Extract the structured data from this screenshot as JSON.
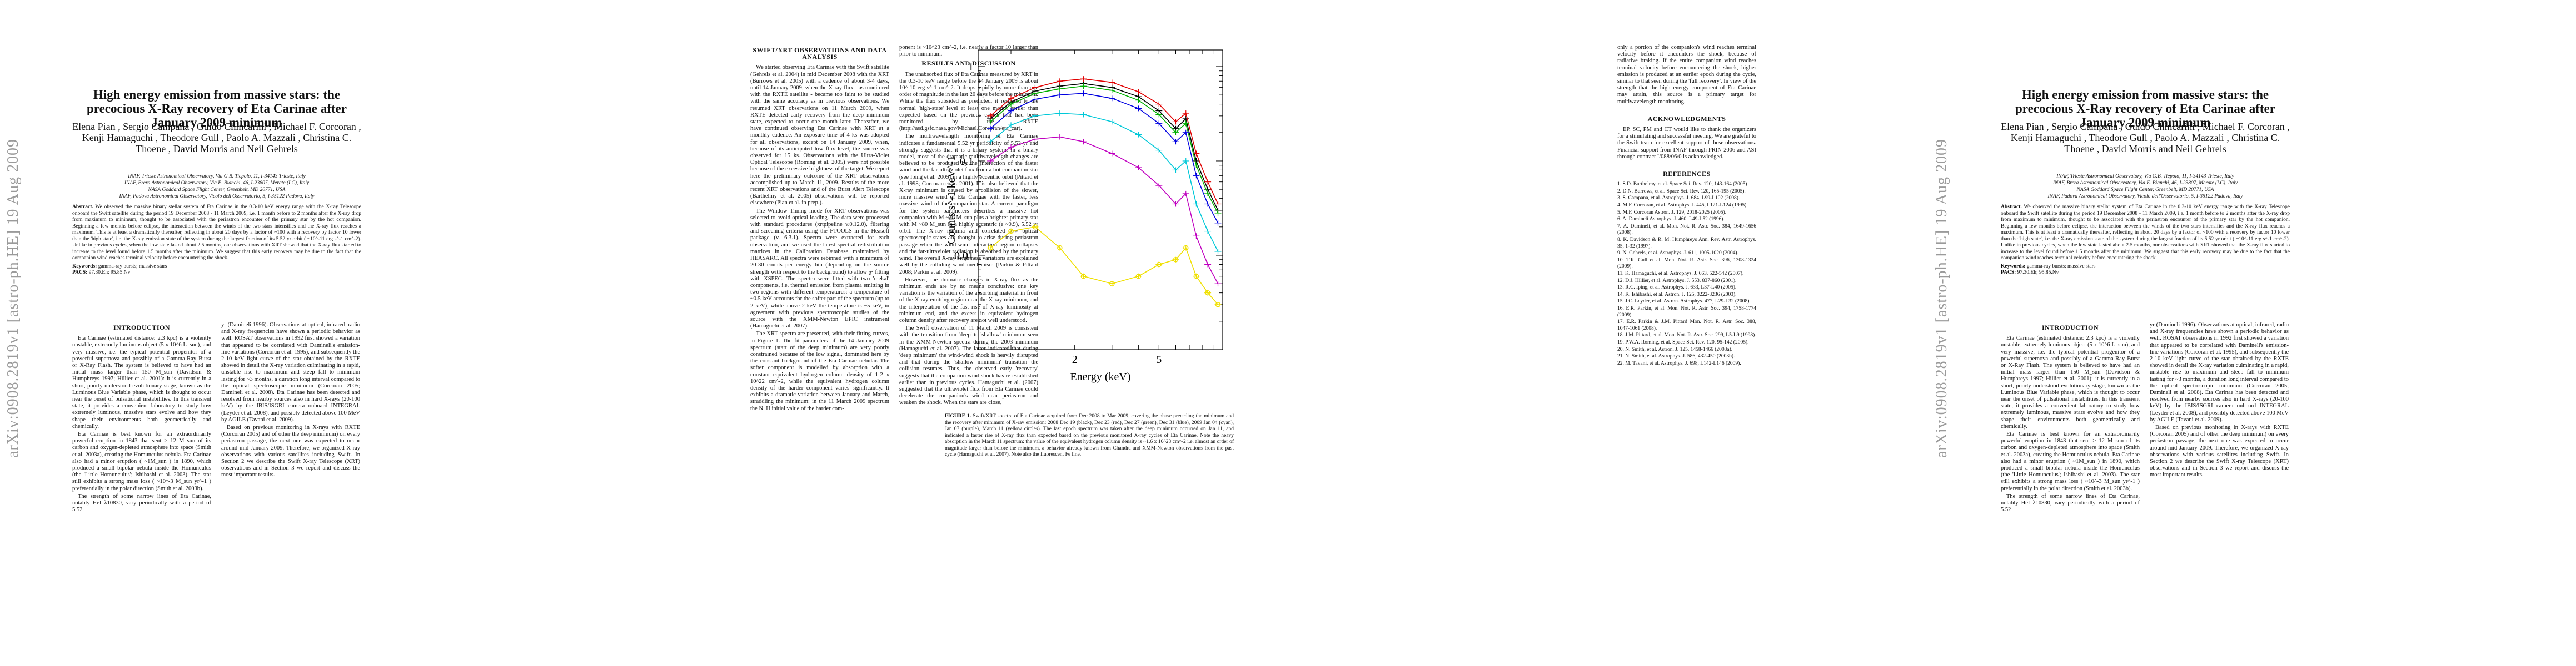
{
  "arxiv_stamp": "arXiv:0908.2819v1  [astro-ph.HE]  19 Aug 2009",
  "title": "High energy emission from massive stars: the precocious X-Ray recovery of Eta Carinae after January 2009 minimum",
  "authors": "Elena Pian , Sergio Campana , Guido Chincarini , Michael F. Corcoran , Kenji Hamaguchi , Theodore Gull , Paolo A. Mazzali , Christina C. Thoene , David Morris and Neil Gehrels",
  "affiliations": [
    "INAF, Trieste Astronomical Observatory, Via G.B. Tiepolo, 11, I-34143 Trieste, Italy",
    "INAF, Brera Astronomical Observatory, Via E. Bianchi, 46, I-23807, Merate (LC), Italy",
    "NASA Goddard Space Flight Center, Greenbelt, MD 20771, USA",
    "INAF, Padova Astronomical Observatory, Vicolo dell'Osservatorio, 5, I-35122 Padova, Italy"
  ],
  "abstract_label": "Abstract.",
  "abstract": "We observed the massive binary stellar system of Eta Carinae in the 0.3-10 keV energy range with the X-ray Telescope onboard the Swift satellite during the period 19 December 2008 - 11 March 2009, i.e. 1 month before to 2 months after the X-ray drop from maximum to minimum, thought to be associated with the periastron encounter of the primary star by the hot companion. Beginning a few months before eclipse, the interaction between the winds of the two stars intensifies and the X-ray flux reaches a maximum. This is at least a dramatically thereafter, reflecting in about 20 days by a factor of ~100 with a recovery by factor 10 lower than the 'high state', i.e. the X-ray emission state of the system during the largest fraction of its 5.52 yr orbit ( ~10^-11 erg s^-1 cm^-2). Unlike in previous cycles, when the low state lasted about 2.5 months, our observations with XRT showed that the X-ray flux started to increase to the level found before 1.5 months after the minimum. We suggest that this early recovery may be due to the fact that the companion wind reaches terminal velocity before encountering the shock.",
  "keywords_label": "Keywords:",
  "keywords": "gamma-ray bursts; massive stars",
  "pacs_label": "PACS:",
  "pacs": "97.30.Eh; 95.85.Nv",
  "sections": {
    "intro": "INTRODUCTION",
    "obs": "SWIFT/XRT OBSERVATIONS AND DATA ANALYSIS",
    "results": "RESULTS AND DISCUSSION",
    "ack": "ACKNOWLEDGMENTS",
    "refs": "REFERENCES"
  },
  "intro_paragraphs": [
    "Eta Carinae (estimated distance: 2.3 kpc) is a violently unstable, extremely luminous object (5 x 10^6 L_sun), and very massive, i.e. the typical potential progenitor of a powerful supernova and possibly of a Gamma-Ray Burst or X-Ray Flash. The system is believed to have had an initial mass larger than 150 M_sun (Davidson & Humphreys 1997; Hillier et al. 2001): it is currently in a short, poorly understood evolutionary stage, known as the Luminous Blue Variable phase, which is thought to occur near the onset of pulsational instabilities. In this transient state, it provides a convenient laboratory to study how extremely luminous, massive stars evolve and how they shape their environments both geometrically and chemically.",
    "Eta Carinae is best known for an extraordinarily powerful eruption in 1843 that sent > 12 M_sun of its carbon and oxygen-depleted atmosphere into space (Smith et al. 2003a), creating the Homunculus nebula. Eta Carinae also had a minor eruption ( ~1M_sun ) in 1890, which produced a small bipolar nebula inside the Homunculus (the 'Little Homunculus'; Ishibashi et al. 2003). The star still exhibits a strong mass loss ( ~10^-3 M_sun yr^-1 ) preferentially in the polar direction (Smith et al. 2003b).",
    "The strength of some narrow lines of Eta Carinae, notably HeI λ10830, vary periodically with a period of 5.52"
  ],
  "col2_paragraphs": [
    "yr (Damineli 1996). Observations at optical, infrared, radio and X-ray frequencies have shown a periodic behavior as well. ROSAT observations in 1992 first showed a variation that appeared to be correlated with Damineli's emission-line variations (Corcoran et al. 1995), and subsequently the 2-10 keV light curve of the star obtained by the RXTE showed in detail the X-ray variation culminating in a rapid, unstable rise to maximum and steep fall to minimum lasting for ~3 months, a duration long interval compared to the optical spectroscopic minimum (Corcoran 2005; Damineli et al. 2008). Eta Carinae has been detected and resolved from nearby sources also in hard X-rays (20-100 keV) by the IBIS/ISGRI camera onboard INTEGRAL (Leyder et al. 2008), and possibly detected above 100 MeV by AGILE (Tavani et al. 2009).",
    "Based on previous monitoring in X-rays with RXTE (Corcoran 2005) and of other the deep minimum) on every periastron passage, the next one was expected to occur around mid January 2009. Therefore, we organized X-ray observations with various satellites including Swift. In Section 2 we describe the Swift X-ray Telescope (XRT) observations and in Section 3 we report and discuss the most important results."
  ],
  "obs_paragraphs": [
    "We started observing Eta Carinae with the Swift satellite (Gehrels et al. 2004) in mid December 2008 with the XRT (Burrows et al. 2005) with a cadence of about 3-4 days, until 14 January 2009, when the X-ray flux - as monitored with the RXTE satellite - became too faint to be studied with the same accuracy as in previous observations. We resumed XRT observations on 11 March 2009, when RXTE detected early recovery from the deep minimum state, expected to occur one month later. Thereafter, we have continued observing Eta Carinae with XRT at a monthly cadence. An exposure time of 4 ks was adopted for all observations, except on 14 January 2009, when, because of its anticipated low flux level, the source was observed for 15 ks. Observations with the Ultra-Violet Optical Telescope (Roming et al. 2005) were not possible because of the excessive brightness of the target. We report here the preliminary outcome of the XRT observations accomplished up to March 11, 2009. Results of the more recent XRT observations and of the Burst Alert Telescope (Barthelmy et al. 2005) observations will be reported elsewhere (Pian et al. in prep.).",
    "The Window Timing mode for XRT observations was selected to avoid optical loading. The data were processed with standard procedures (xrtpipeline v.0.12.0), filtering and screening criteria using the FTOOLS in the Heasoft package (v. 6.3.1). Spectra were extracted for each observation, and we used the latest spectral redistribution matrices in the Calibration Database maintained by HEASARC. All spectra were rebinned with a minimum of 20-30 counts per energy bin (depending on the source strength with respect to the background) to allow χ² fitting with XSPEC. The spectra were fitted with two 'mekal' components, i.e. thermal emission from plasma emitting in two regions with different temperatures: a temperature of ~0.5 keV accounts for the softer part of the spectrum (up to 2 keV), while above 2 keV the temperature is ~5 keV, in agreement with previous spectroscopic studies of the source with the XMM-Newton EPIC instrument (Hamaguchi et al. 2007).",
    "The XRT spectra are presented, with their fitting curves, in Figure 1. The fit parameters of the 14 January 2009 spectrum (start of the deep minimum) are very poorly constrained because of the low signal, dominated here by the constant background of the Eta Carinae nebular. The softer component is modelled by absorption with a constant equivalent hydrogen column density of 1-2 x 10^22 cm^-2, while the equivalent hydrogen column density of the harder component varies significantly. It exhibits a dramatic variation between January and March, straddling the minimum: in the 11 March 2009 spectrum the N_H initial value of the harder com-"
  ],
  "results_paragraphs": [
    "ponent is ~10^23 cm^-2, i.e. nearly a factor 10 larger than prior to minimum.",
    "The unabsorbed flux of Eta Carinae measured by XRT in the 0.3-10 keV range before the 14 January 2009 is about 10^-10 erg s^-1 cm^-2. It drops rapidly by more than one order of magnitude in the last 20 days before the minimum. While the flux subsided as predicted, it restarted to the normal 'high-state' level at least one month earlier than expected based on the previous cycles that had been monitored by the RXTE (http://asd.gsfc.nasa.gov/Michael.Corcoran/eta_car).",
    "The multiwavelength monitoring of Eta Carinae indicates a fundamental 5.52 yr periodicity of 5.52 yr and strongly suggests that it is a binary system. In a binary model, most of the dramatic multiwavelength changes are believed to be produced by the interaction of the faster wind and the far-ultraviolet flux from a hot companion star (see Iping et al. 2005) in a highly eccentric orbit (Pittard et al. 1998; Corcoran et al. 2001). It is also believed that the X-ray minimum is caused by a collision of the slower, more massive wind of Eta Carinae with the faster, less massive wind of the companion star. A current paradigm for the system parameters describes a massive hot companion with M ~30 M_sun plus a brighter primary star with M ~80 M_sun in a highly eccentric (e ~0.9), 5.52 yr orbit. The X-ray minima and correlated low optical spectroscopic states are thought to arise during periastron passage when the wind-wind interaction region collapses and the far-ultraviolet radiation is absorbed by the primary wind. The overall X-ray brightness variations are explained well by the colliding wind mechanism (Parkin & Pittard 2008; Parkin et al. 2009).",
    "However, the dramatic changes in X-ray flux as the minimum ends are by no means conclusive: one key variation is the variation of the absorbing material in front of the X-ray emitting region near the X-ray minimum, and the interpretation of the fast rise of X-ray luminosity at minimum end, and the excess in equivalent hydrogen column density after recovery are not well understood.",
    "The Swift observation of 11 March 2009 is consistent with the transition from 'deep' to 'shallow' minimum seen in the XMM-Newton spectra during the 2003 minimum (Hamaguchi et al. 2007). The latter indicated that during 'deep minimum' the wind-wind shock is heavily disrupted and that during the 'shallow minimum' transition the collision resumes. Thus, the observed early 'recovery' suggests that the companion wind shock has re-established earlier than in previous cycles. Hamaguchi et al. (2007) suggested that the ultraviolet flux from Eta Carinae could decelerate the companion's wind near periastron and weaken the shock. When the stars are close,"
  ],
  "col5_paragraph": "only a portion of the companion's wind reaches terminal velocity before it encounters the shock, because of radiative braking. If the entire companion wind reaches terminal velocity before encountering the shock, higher emission is produced at an earlier epoch during the cycle, similar to that seen during the 'full recovery'. In view of the strength that the high energy component of Eta Carinae may attain, this source is a primary target for multiwavelength monitoring.",
  "ack_text": "EP, SC, PM and CT would like to thank the organizers for a stimulating and successful meeting. We are grateful to the Swift team for excellent support of these observations. Financial support from INAF through PRIN 2006 and ASI through contract I/088/06/0 is acknowledged.",
  "references": [
    "1. S.D. Barthelmy, et al. Space Sci. Rev. 120, 143-164 (2005)",
    "2. D.N. Burrows, et al. Space Sci. Rev. 120, 165-195 (2005).",
    "3. S. Campana, et al. Astrophys. J. 684, L99-L102 (2008).",
    "4. M.F. Corcoran, et al. Astrophys. J. 445, L121-L124 (1995).",
    "5. M.F. Corcoran Astron. J. 129, 2018-2025 (2005).",
    "6. A. Damineli Astrophys. J. 460, L49-L52 (1996).",
    "7. A. Damineli, et al. Mon. Not. R. Astr. Soc. 384, 1649-1656 (2008).",
    "8. K. Davidson & R. M. Humphreys Ann. Rev. Astr. Astrophys. 35, 1-32 (1997).",
    "9. N. Gehrels, et al. Astrophys. J. 611, 1005-1020 (2004).",
    "10. T.R. Gull et al. Mon. Not. R. Astr. Soc. 396, 1308-1324 (2009).",
    "11. K. Hamaguchi, et al. Astrophys. J. 663, 522-542 (2007).",
    "12. D.J. Hillier, et al. Astrophys. J. 553, 837-860 (2001).",
    "13. R.C. Iping, et al. Astrophys. J. 633, L37-L40 (2005).",
    "14. K. Ishibashi, et al. Astron. J. 125, 3222-3236 (2003).",
    "15. J.C. Leyder, et al. Astron. Astrophys. 477, L29-L32 (2008).",
    "16. E.R. Parkin, et al. Mon. Not. R. Astr. Soc. 394, 1758-1774 (2009).",
    "17. E.R. Parkin & J.M. Pittard Mon. Not. R. Astr. Soc. 388, 1047-1061 (2008).",
    "18. J.M. Pittard, et al. Mon. Not. R. Astr. Soc. 299, L5-L9 (1998).",
    "19. P.W.A. Roming, et al. Space Sci. Rev. 120, 95-142 (2005).",
    "20. N. Smith, et al. Astron. J. 125, 1458-1466 (2003a).",
    "21. N. Smith, et al. Astrophys. J. 586, 432-450 (2003b).",
    "22. M. Tavani, et al. Astrophys. J. 698, L142-L146 (2009)."
  ],
  "figure_caption_label": "FIGURE 1.",
  "figure_caption": "Swift/XRT spectra of Eta Carinae acquired from Dec 2008 to Mar 2009, covering the phase preceding the minimum and the recovery after minimum of X-ray emission: 2008 Dec 19 (black), Dec 23 (red), Dec 27 (green), Dec 31 (blue), 2009 Jan 04 (cyan), Jan 07 (purple), March 11 (yellow circles). The last epoch spectrum was taken after the deep minimum occurred on Jan 11, and indicated a faster rise of X-ray flux than expected based on the previous monitored X-ray cycles of Eta Carinae. Note the heavy absorption in the March 11 spectrum: the value of the equivalent hydrogen column density is ~1.6 x 10^23 cm^-2 i.e. almost an order of magnitude larger than before the minimum, a behavior already known from Chandra and XMM-Newton observations from the past cycle (Hamaguchi et al. 2007). Note also the fluorescent Fe line.",
  "chart_data": {
    "type": "line",
    "xlabel": "Energy (keV)",
    "ylabel": "Counts s^-1 keV^-1",
    "xscale": "log",
    "yscale": "log",
    "xlim": [
      0.7,
      10
    ],
    "ylim": [
      0.001,
      1.5
    ],
    "x_ticks": [
      "2",
      "5"
    ],
    "y_ticks": [
      "1",
      "0.1",
      "0.01"
    ],
    "series": [
      {
        "name": "2008 Dec 19",
        "color": "#000000",
        "x": [
          0.8,
          1.0,
          1.3,
          1.7,
          2.2,
          3.0,
          4.0,
          5.0,
          6.0,
          6.7,
          7.5,
          8.5,
          9.5
        ],
        "y": [
          0.28,
          0.42,
          0.55,
          0.62,
          0.66,
          0.6,
          0.48,
          0.34,
          0.22,
          0.28,
          0.1,
          0.05,
          0.03
        ]
      },
      {
        "name": "2008 Dec 23",
        "color": "#e00000",
        "x": [
          0.8,
          1.0,
          1.3,
          1.7,
          2.2,
          3.0,
          4.0,
          5.0,
          6.0,
          6.7,
          7.5,
          8.5,
          9.5
        ],
        "y": [
          0.3,
          0.46,
          0.6,
          0.7,
          0.74,
          0.68,
          0.54,
          0.4,
          0.26,
          0.32,
          0.12,
          0.06,
          0.035
        ]
      },
      {
        "name": "2008 Dec 27",
        "color": "#00b000",
        "x": [
          0.8,
          1.0,
          1.3,
          1.7,
          2.2,
          3.0,
          4.0,
          5.0,
          6.0,
          6.7,
          7.5,
          8.5,
          9.5
        ],
        "y": [
          0.26,
          0.4,
          0.52,
          0.58,
          0.62,
          0.56,
          0.44,
          0.31,
          0.2,
          0.25,
          0.09,
          0.045,
          0.028
        ]
      },
      {
        "name": "2008 Dec 31",
        "color": "#0000e0",
        "x": [
          0.8,
          1.0,
          1.3,
          1.7,
          2.2,
          3.0,
          4.0,
          5.0,
          6.0,
          6.7,
          7.5,
          8.5,
          9.5
        ],
        "y": [
          0.22,
          0.34,
          0.45,
          0.5,
          0.52,
          0.46,
          0.36,
          0.25,
          0.16,
          0.2,
          0.07,
          0.035,
          0.022
        ]
      },
      {
        "name": "2009 Jan 04",
        "color": "#00c8d8",
        "x": [
          0.8,
          1.0,
          1.3,
          1.7,
          2.2,
          3.0,
          4.0,
          5.0,
          6.0,
          6.7,
          7.5,
          8.5,
          9.5
        ],
        "y": [
          0.16,
          0.24,
          0.3,
          0.32,
          0.31,
          0.26,
          0.19,
          0.13,
          0.08,
          0.1,
          0.035,
          0.018,
          0.011
        ]
      },
      {
        "name": "2009 Jan 07",
        "color": "#c000c0",
        "x": [
          0.8,
          1.0,
          1.3,
          1.7,
          2.2,
          3.0,
          4.0,
          5.0,
          6.0,
          6.7,
          7.5,
          8.5,
          9.5
        ],
        "y": [
          0.1,
          0.14,
          0.17,
          0.18,
          0.16,
          0.12,
          0.085,
          0.055,
          0.035,
          0.045,
          0.016,
          0.008,
          0.005
        ]
      },
      {
        "name": "2009 Mar 11",
        "color": "#f0e000",
        "x": [
          0.8,
          1.0,
          1.3,
          1.7,
          2.2,
          3.0,
          4.0,
          5.0,
          6.0,
          6.7,
          7.5,
          8.5,
          9.5
        ],
        "y": [
          0.012,
          0.018,
          0.02,
          0.012,
          0.006,
          0.005,
          0.006,
          0.008,
          0.009,
          0.012,
          0.006,
          0.004,
          0.003
        ]
      }
    ]
  }
}
